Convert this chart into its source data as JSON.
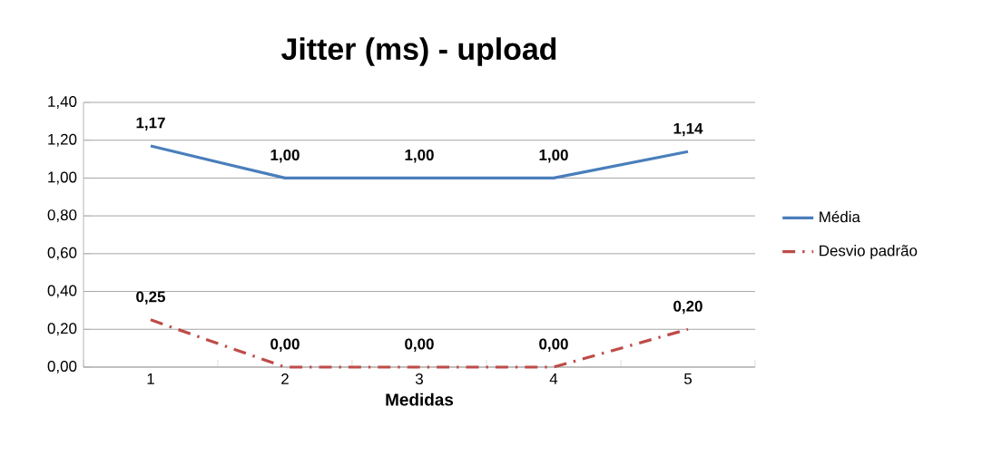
{
  "chart_data": {
    "type": "line",
    "title": "Jitter (ms) - upload",
    "xlabel": "Medidas",
    "categories": [
      "1",
      "2",
      "3",
      "4",
      "5"
    ],
    "series": [
      {
        "name": "Média",
        "color": "#4a7ebb",
        "line_style": "solid",
        "values": [
          1.17,
          1.0,
          1.0,
          1.0,
          1.14
        ],
        "value_labels": [
          "1,17",
          "1,00",
          "1,00",
          "1,00",
          "1,14"
        ]
      },
      {
        "name": "Desvio padrão",
        "color": "#be4b48",
        "line_style": "dashed",
        "values": [
          0.25,
          0.0,
          0.0,
          0.0,
          0.2
        ],
        "value_labels": [
          "0,25",
          "0,00",
          "0,00",
          "0,00",
          "0,20"
        ]
      }
    ],
    "ylim": [
      0,
      1.4
    ],
    "yticks": [
      {
        "value": 0,
        "label": "0,00"
      },
      {
        "value": 0.2,
        "label": "0,20"
      },
      {
        "value": 0.4,
        "label": "0,40"
      },
      {
        "value": 0.6,
        "label": "0,60"
      },
      {
        "value": 0.8,
        "label": "0,80"
      },
      {
        "value": 1.0,
        "label": "1,00"
      },
      {
        "value": 1.2,
        "label": "1,20"
      },
      {
        "value": 1.4,
        "label": "1,40"
      }
    ],
    "grid": "y",
    "legend": "right"
  }
}
